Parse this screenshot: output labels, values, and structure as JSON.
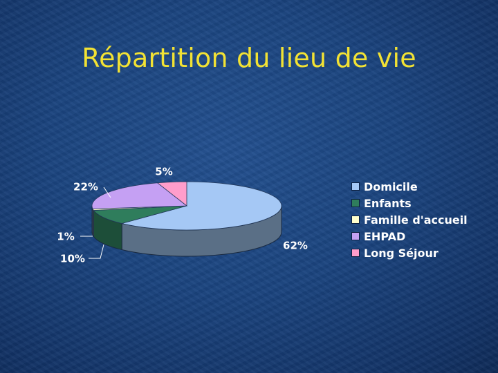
{
  "title": "Répartition du lieu de vie",
  "chart_data": {
    "type": "pie",
    "style": "3d",
    "categories": [
      "Domicile",
      "Enfants",
      "Famille d'accueil",
      "EHPAD",
      "Long Séjour"
    ],
    "values": [
      62,
      10,
      1,
      22,
      5
    ],
    "data_labels": [
      "62%",
      "10%",
      "1%",
      "22%",
      "5%"
    ],
    "colors": [
      "#a5c8f5",
      "#2f7d5c",
      "#ffffcc",
      "#c5a0f3",
      "#ff9dcb"
    ],
    "legend_position": "right"
  }
}
